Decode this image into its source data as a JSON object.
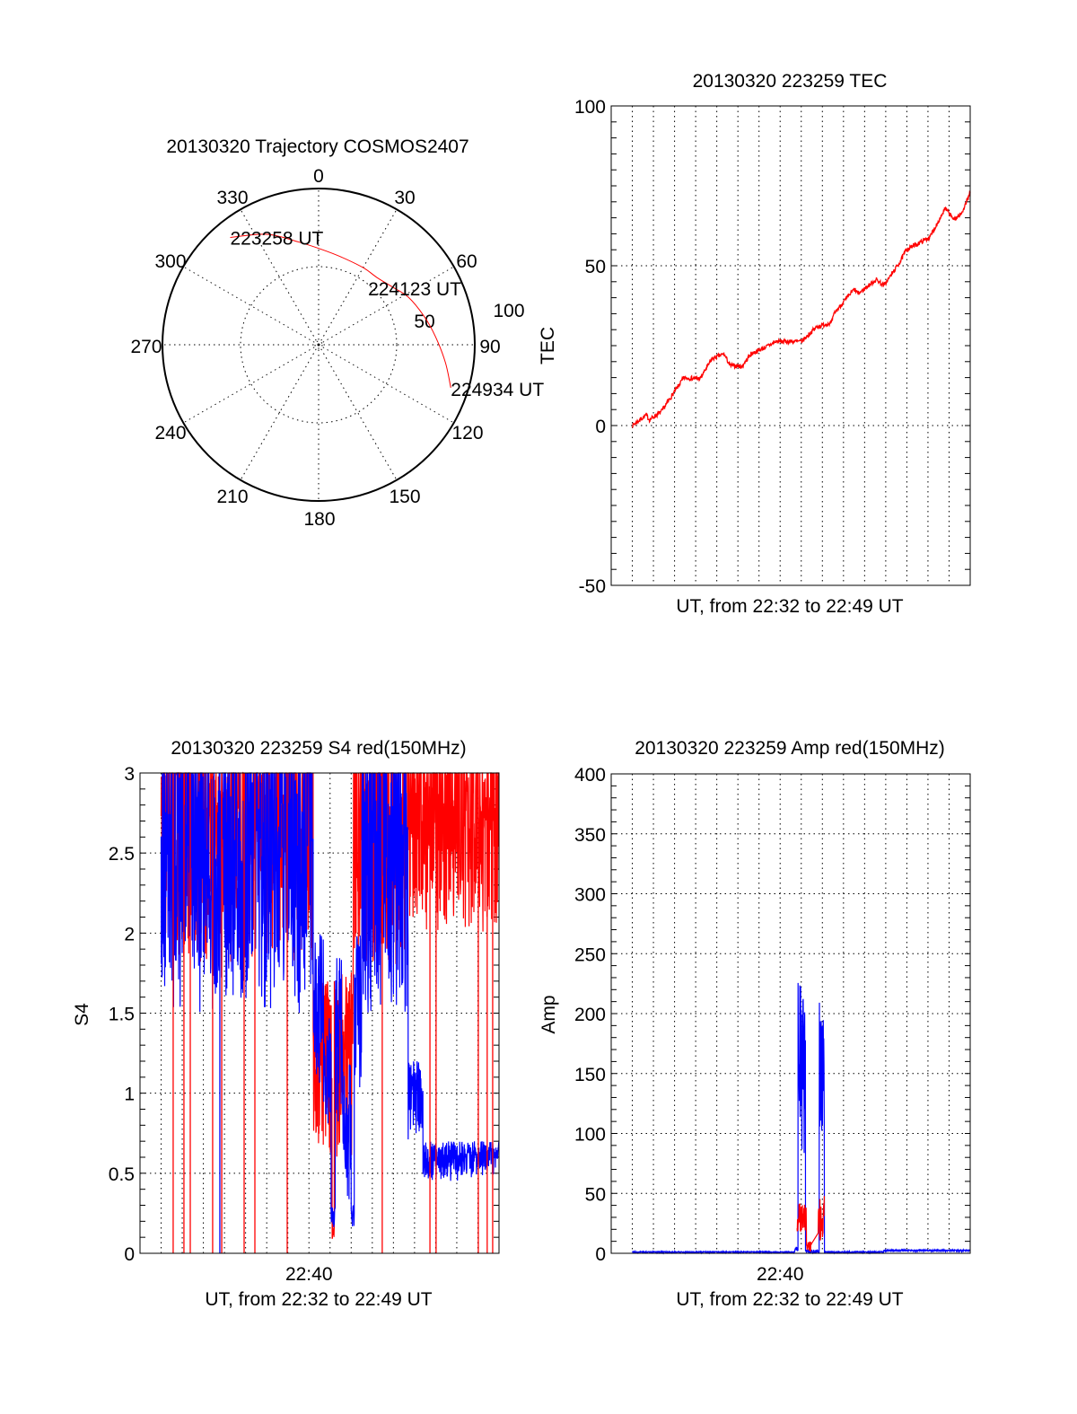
{
  "chart_data": [
    {
      "type": "polar",
      "title": "20130320 Trajectory COSMOS2407",
      "angular_ticks": [
        "0",
        "30",
        "60",
        "90",
        "120",
        "150",
        "180",
        "210",
        "240",
        "270",
        "300",
        "330"
      ],
      "radial_ticks": [
        "50",
        "100"
      ],
      "rlim": [
        0,
        100
      ],
      "grid": true,
      "trajectory_color": "#ff0000",
      "trajectory": [
        [
          320.5,
          89
        ],
        [
          335,
          78
        ],
        [
          349,
          67
        ],
        [
          2,
          61
        ],
        [
          14.5,
          58
        ],
        [
          30,
          57
        ],
        [
          41,
          57
        ],
        [
          52,
          60
        ],
        [
          62,
          65
        ],
        [
          75,
          70
        ],
        [
          86,
          75
        ],
        [
          98,
          82
        ],
        [
          108,
          89
        ]
      ],
      "annotations": [
        {
          "text": "223258 UT",
          "az": 320.5,
          "r": 89
        },
        {
          "text": "224123 UT",
          "az": 41,
          "r": 57
        },
        {
          "text": "224934 UT",
          "az": 108,
          "r": 89
        }
      ]
    },
    {
      "type": "line",
      "title": "20130320 223259 TEC",
      "xlabel": "UT, from 22:32 to 22:49 UT",
      "ylabel": "TEC",
      "xlim_minutes_after_2232": [
        0,
        17
      ],
      "ylim": [
        -50,
        100
      ],
      "yticks": [
        "-50",
        "0",
        "50",
        "100"
      ],
      "grid": true,
      "series": [
        {
          "name": "TEC",
          "color": "#ff0000",
          "points": [
            [
              1,
              0
            ],
            [
              1.66,
              3.3
            ],
            [
              1.81,
              1.8
            ],
            [
              2.37,
              4.3
            ],
            [
              2.94,
              10
            ],
            [
              3.43,
              14.9
            ],
            [
              4.21,
              14.7
            ],
            [
              4.78,
              20.9
            ],
            [
              5.34,
              22.4
            ],
            [
              5.63,
              18.8
            ],
            [
              6.19,
              18.5
            ],
            [
              6.62,
              22.4
            ],
            [
              7.46,
              25
            ],
            [
              7.82,
              26.3
            ],
            [
              9.02,
              26.3
            ],
            [
              9.73,
              30.9
            ],
            [
              10.43,
              32.2
            ],
            [
              10.58,
              35.3
            ],
            [
              11.5,
              42.6
            ],
            [
              11.71,
              41.3
            ],
            [
              12.56,
              45.7
            ],
            [
              12.91,
              43.8
            ],
            [
              13.69,
              51.3
            ],
            [
              13.97,
              55
            ],
            [
              15.1,
              59
            ],
            [
              15.81,
              67.9
            ],
            [
              16.23,
              64.5
            ],
            [
              16.59,
              66.3
            ],
            [
              17,
              73
            ]
          ]
        }
      ]
    },
    {
      "type": "line",
      "title": "20130320 223259 S4 red(150MHz)",
      "xlabel": "UT, from 22:32 to 22:49 UT",
      "ylabel": "S4",
      "xlim_minutes_after_2232": [
        0,
        17
      ],
      "xtick_labels": [
        {
          "t": 8,
          "label": "22:40"
        }
      ],
      "ylim": [
        0,
        3
      ],
      "yticks": [
        "0",
        "0.5",
        "1",
        "1.5",
        "2",
        "2.5",
        "3"
      ],
      "grid": true,
      "series": [
        {
          "name": "red",
          "color": "#ff0000",
          "bands_t_start_end_low_high": [
            [
              1,
              8.2,
              1.8,
              3.3
            ],
            [
              8.2,
              9.1,
              0.6,
              1.7
            ],
            [
              9.1,
              9.2,
              0.08,
              0.2
            ],
            [
              9.2,
              10.1,
              0.5,
              1.8
            ],
            [
              10.1,
              12.7,
              1.8,
              3.3
            ],
            [
              12.7,
              17,
              2.0,
              3.3
            ]
          ],
          "dropouts_t": [
            1.57,
            2.08,
            2.38,
            3.44,
            3.87,
            4.93,
            5.44,
            6.97,
            11.47,
            13.73,
            14.02,
            16.02,
            16.44,
            16.7
          ]
        },
        {
          "name": "blue",
          "color": "#0000ff",
          "bands_t_start_end_low_high": [
            [
              1,
              8.2,
              1.5,
              3.3
            ],
            [
              8.2,
              8.7,
              1.0,
              2.0
            ],
            [
              8.7,
              9.05,
              0.7,
              1.5
            ],
            [
              9.05,
              9.25,
              0.12,
              0.3
            ],
            [
              9.25,
              9.6,
              0.8,
              1.85
            ],
            [
              9.6,
              10.0,
              0.3,
              1.2
            ],
            [
              10.0,
              10.15,
              0.15,
              0.3
            ],
            [
              10.15,
              10.5,
              0.9,
              2.0
            ],
            [
              10.5,
              12.7,
              1.5,
              3.3
            ],
            [
              12.7,
              13.4,
              0.7,
              1.2
            ],
            [
              13.4,
              17,
              0.45,
              0.7
            ]
          ],
          "dropouts_t": [
            3.78
          ]
        }
      ]
    },
    {
      "type": "line",
      "title": "20130320 223259 Amp red(150MHz)",
      "xlabel": "UT, from 22:32 to 22:49 UT",
      "ylabel": "Amp",
      "xlim_minutes_after_2232": [
        0,
        17
      ],
      "xtick_labels": [
        {
          "t": 8,
          "label": "22:40"
        }
      ],
      "ylim": [
        0,
        400
      ],
      "yticks": [
        "0",
        "50",
        "100",
        "150",
        "200",
        "250",
        "300",
        "350",
        "400"
      ],
      "grid": true,
      "series": [
        {
          "name": "blue",
          "color": "#0000ff",
          "bands_t_start_end_low_high": [
            [
              1,
              8.7,
              0.5,
              1.5
            ],
            [
              8.7,
              8.85,
              2,
              5
            ],
            [
              8.85,
              9.2,
              80,
              230
            ],
            [
              9.2,
              9.85,
              0,
              3
            ],
            [
              9.85,
              10.1,
              60,
              213
            ],
            [
              10.1,
              12.9,
              0.5,
              1.5
            ],
            [
              12.9,
              17,
              1.5,
              3
            ]
          ]
        },
        {
          "name": "red",
          "color": "#ff0000",
          "bands_t_start_end_low_high": [
            [
              8.8,
              9.25,
              15,
              42
            ],
            [
              9.25,
              9.5,
              0,
              10
            ],
            [
              9.8,
              10.1,
              10,
              50
            ]
          ]
        }
      ]
    }
  ]
}
